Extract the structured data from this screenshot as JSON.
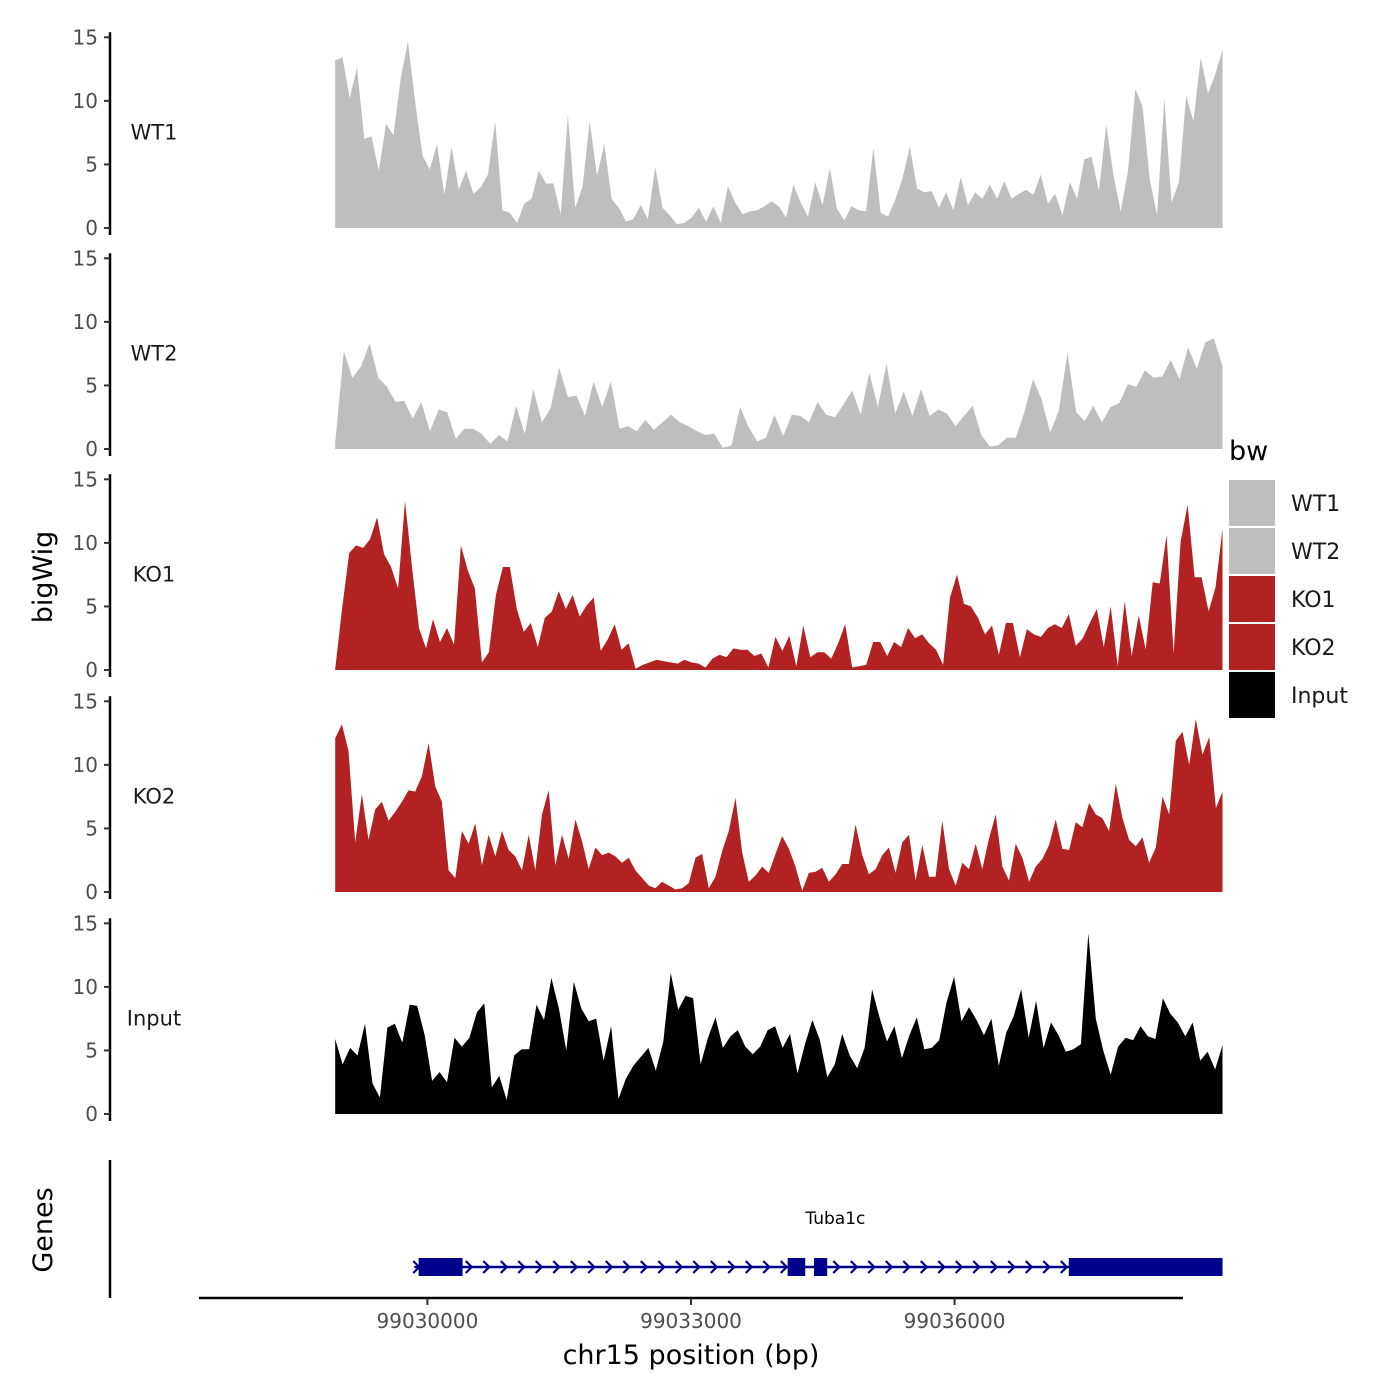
{
  "chart_data": {
    "type": "area",
    "title": "",
    "ylabel": "bigWig",
    "xlabel": "chr15 position (bp)",
    "genes_label": "Genes",
    "xlim": [
      99027400,
      99038600
    ],
    "ylim": [
      0,
      15
    ],
    "y_ticks": [
      0,
      5,
      10,
      15
    ],
    "x_ticks": [
      99030000,
      99033000,
      99036000
    ],
    "x_tick_labels": [
      "99030000",
      "99033000",
      "99036000"
    ],
    "grid": false,
    "legend": {
      "title": "bw",
      "position": "right",
      "entries": [
        {
          "label": "WT1",
          "color": "#bebebe"
        },
        {
          "label": "WT2",
          "color": "#bebebe"
        },
        {
          "label": "KO1",
          "color": "#b22222"
        },
        {
          "label": "KO2",
          "color": "#b22222"
        },
        {
          "label": "Input",
          "color": "#000000"
        }
      ]
    },
    "x_start": 99028950,
    "x_end": 99039050,
    "series": [
      {
        "name": "WT1",
        "color": "#bebebe",
        "values": [
          13.2,
          13.4,
          10.2,
          12.6,
          7.0,
          7.2,
          4.5,
          8.2,
          7.3,
          11.7,
          14.7,
          9.9,
          5.7,
          4.6,
          6.6,
          2.6,
          6.4,
          3.0,
          4.5,
          2.7,
          3.2,
          4.2,
          8.4,
          1.4,
          1.2,
          0.4,
          1.9,
          2.3,
          4.5,
          3.5,
          3.5,
          1.1,
          8.9,
          1.6,
          3.2,
          8.4,
          4.1,
          6.6,
          2.3,
          1.6,
          0.5,
          0.7,
          1.8,
          0.7,
          4.8,
          1.6,
          1.0,
          0.3,
          0.4,
          0.8,
          1.6,
          0.5,
          1.7,
          0.4,
          3.3,
          2.0,
          1.1,
          1.3,
          1.4,
          1.7,
          2.1,
          1.7,
          0.8,
          3.4,
          2.0,
          0.9,
          3.6,
          1.8,
          4.7,
          1.5,
          0.6,
          1.7,
          1.4,
          1.3,
          6.3,
          1.2,
          0.9,
          2.2,
          3.9,
          6.4,
          3.1,
          2.8,
          2.9,
          1.6,
          2.8,
          1.4,
          4.0,
          1.8,
          2.8,
          2.3,
          3.4,
          2.3,
          3.7,
          2.3,
          2.7,
          3.0,
          2.6,
          4.2,
          1.9,
          2.7,
          1.0,
          3.6,
          2.3,
          5.4,
          5.6,
          2.9,
          8.1,
          4.2,
          1.3,
          4.5,
          10.9,
          9.6,
          3.8,
          1.0,
          10.2,
          2.0,
          3.6,
          10.4,
          8.4,
          13.4,
          10.6,
          12.1,
          14.0
        ]
      },
      {
        "name": "WT2",
        "color": "#bebebe",
        "values": [
          0.5,
          7.7,
          5.6,
          6.5,
          8.3,
          5.6,
          4.9,
          3.7,
          3.8,
          2.4,
          3.7,
          1.4,
          3.1,
          2.9,
          0.8,
          1.6,
          1.6,
          1.2,
          0.4,
          1.1,
          0.6,
          3.4,
          1.2,
          4.7,
          2.1,
          3.2,
          6.4,
          4.1,
          4.2,
          2.6,
          5.3,
          3.3,
          5.3,
          1.6,
          1.8,
          1.4,
          2.3,
          1.5,
          2.1,
          2.7,
          2.1,
          1.8,
          1.4,
          1.1,
          1.2,
          0.1,
          0.3,
          3.3,
          1.7,
          0.6,
          0.9,
          2.7,
          1.0,
          2.7,
          2.6,
          2.1,
          3.7,
          2.7,
          2.5,
          3.5,
          4.6,
          2.7,
          6.0,
          3.3,
          6.7,
          2.8,
          4.5,
          2.6,
          4.7,
          2.6,
          3.1,
          2.8,
          1.8,
          2.6,
          3.4,
          1.1,
          0.2,
          0.3,
          0.9,
          0.9,
          2.9,
          5.5,
          3.9,
          1.3,
          3.0,
          7.6,
          2.9,
          2.2,
          3.4,
          2.1,
          3.3,
          3.6,
          5.1,
          4.9,
          6.2,
          5.6,
          5.7,
          7.0,
          5.5,
          8.0,
          6.3,
          8.4,
          8.7,
          6.5
        ]
      },
      {
        "name": "KO1",
        "color": "#b22222",
        "values": [
          0.1,
          4.9,
          9.2,
          9.8,
          9.6,
          10.3,
          12.0,
          9.1,
          8.1,
          6.4,
          13.3,
          8.1,
          3.3,
          1.7,
          4.0,
          2.2,
          3.3,
          2.0,
          9.8,
          7.8,
          6.4,
          0.6,
          1.4,
          5.9,
          8.1,
          8.1,
          4.8,
          3.0,
          3.7,
          1.8,
          4.1,
          4.6,
          6.2,
          4.8,
          5.9,
          4.2,
          5.1,
          5.7,
          1.5,
          2.4,
          3.6,
          1.6,
          2.1,
          0.1,
          0.4,
          0.6,
          0.8,
          0.7,
          0.6,
          0.5,
          0.8,
          0.6,
          0.5,
          0.2,
          0.9,
          1.2,
          1.0,
          1.7,
          1.6,
          1.6,
          1.1,
          1.3,
          0.2,
          2.6,
          1.5,
          2.7,
          0.3,
          3.5,
          1.0,
          1.4,
          1.4,
          0.9,
          2.1,
          3.6,
          0.2,
          0.3,
          0.4,
          2.2,
          2.2,
          1.1,
          2.2,
          1.8,
          3.3,
          2.5,
          2.8,
          2.1,
          1.6,
          0.4,
          5.7,
          7.5,
          5.2,
          5.0,
          4.1,
          2.8,
          3.5,
          1.2,
          3.7,
          3.7,
          1.0,
          3.2,
          2.8,
          2.6,
          3.3,
          3.6,
          3.3,
          4.4,
          1.9,
          2.5,
          3.7,
          4.8,
          1.8,
          5.0,
          0.3,
          5.4,
          1.1,
          4.3,
          1.6,
          6.9,
          6.8,
          10.6,
          1.3,
          10.1,
          13.0,
          7.3,
          7.3,
          4.6,
          6.5,
          11.1
        ]
      },
      {
        "name": "KO2",
        "color": "#b22222",
        "values": [
          12.1,
          13.2,
          11.1,
          3.9,
          7.7,
          4.1,
          6.5,
          7.1,
          5.6,
          6.3,
          7.1,
          8.0,
          7.9,
          9.1,
          11.7,
          8.3,
          7.1,
          1.7,
          1.1,
          4.8,
          3.8,
          5.4,
          2.1,
          4.5,
          2.8,
          4.8,
          3.3,
          2.8,
          1.7,
          4.5,
          1.7,
          6.1,
          8.0,
          2.1,
          4.5,
          2.6,
          5.7,
          4.0,
          1.8,
          3.5,
          2.9,
          3.1,
          2.8,
          2.3,
          2.7,
          1.7,
          1.1,
          0.5,
          0.3,
          0.8,
          0.5,
          0.2,
          0.3,
          0.7,
          2.7,
          3.0,
          0.3,
          1.2,
          3.2,
          4.8,
          7.4,
          3.1,
          0.8,
          1.3,
          2.0,
          1.5,
          3.0,
          4.4,
          3.4,
          2.0,
          0.1,
          1.5,
          1.6,
          1.9,
          0.8,
          1.4,
          2.2,
          2.2,
          5.3,
          2.9,
          1.4,
          1.8,
          2.9,
          3.5,
          1.5,
          3.9,
          4.5,
          0.9,
          3.7,
          1.2,
          1.2,
          5.6,
          1.8,
          0.5,
          2.3,
          1.8,
          3.8,
          1.8,
          4.2,
          6.1,
          2.0,
          0.9,
          3.8,
          2.7,
          0.8,
          2.0,
          2.6,
          3.7,
          5.7,
          3.4,
          3.3,
          5.5,
          5.1,
          7.0,
          6.1,
          5.8,
          4.8,
          8.5,
          5.8,
          4.1,
          3.6,
          4.3,
          2.3,
          3.5,
          7.5,
          6.1,
          11.9,
          12.6,
          10.0,
          13.6,
          10.8,
          12.2,
          6.6,
          7.9
        ]
      },
      {
        "name": "Input",
        "color": "#000000",
        "values": [
          5.9,
          3.9,
          5.2,
          4.6,
          7.1,
          2.4,
          1.3,
          6.8,
          7.1,
          5.6,
          8.6,
          8.5,
          6.2,
          2.6,
          3.3,
          2.5,
          6.0,
          5.3,
          6.0,
          8.0,
          8.7,
          2.1,
          3.0,
          1.1,
          4.6,
          5.1,
          5.1,
          8.6,
          7.4,
          10.7,
          8.3,
          5.0,
          10.4,
          8.3,
          7.3,
          7.5,
          4.2,
          6.9,
          1.2,
          2.8,
          3.8,
          4.5,
          5.2,
          3.4,
          5.7,
          11.1,
          8.2,
          9.3,
          9.1,
          3.9,
          6.0,
          7.6,
          5.2,
          6.1,
          6.6,
          5.3,
          4.7,
          5.3,
          6.6,
          6.9,
          5.2,
          6.3,
          3.2,
          5.5,
          7.4,
          5.8,
          2.9,
          3.9,
          6.3,
          4.6,
          3.6,
          5.2,
          9.8,
          7.6,
          5.7,
          6.9,
          4.4,
          6.2,
          7.6,
          5.1,
          5.2,
          5.8,
          8.8,
          10.8,
          7.3,
          8.4,
          7.4,
          6.2,
          7.5,
          3.8,
          6.4,
          7.7,
          9.8,
          6.0,
          8.9,
          5.2,
          7.2,
          6.2,
          4.9,
          5.1,
          5.5,
          14.2,
          7.5,
          5.0,
          3.1,
          5.3,
          6.0,
          5.8,
          6.9,
          6.1,
          5.9,
          9.1,
          7.9,
          7.2,
          6.1,
          7.2,
          4.2,
          4.9,
          3.5,
          5.4
        ]
      }
    ],
    "genes": [
      {
        "name": "Tuba1c",
        "strand": "+",
        "start": 99029850,
        "end": 99039050,
        "exons": [
          [
            99029900,
            99030400
          ],
          [
            99034100,
            99034300
          ],
          [
            99034400,
            99034550
          ],
          [
            99037300,
            99039050
          ]
        ]
      }
    ]
  }
}
